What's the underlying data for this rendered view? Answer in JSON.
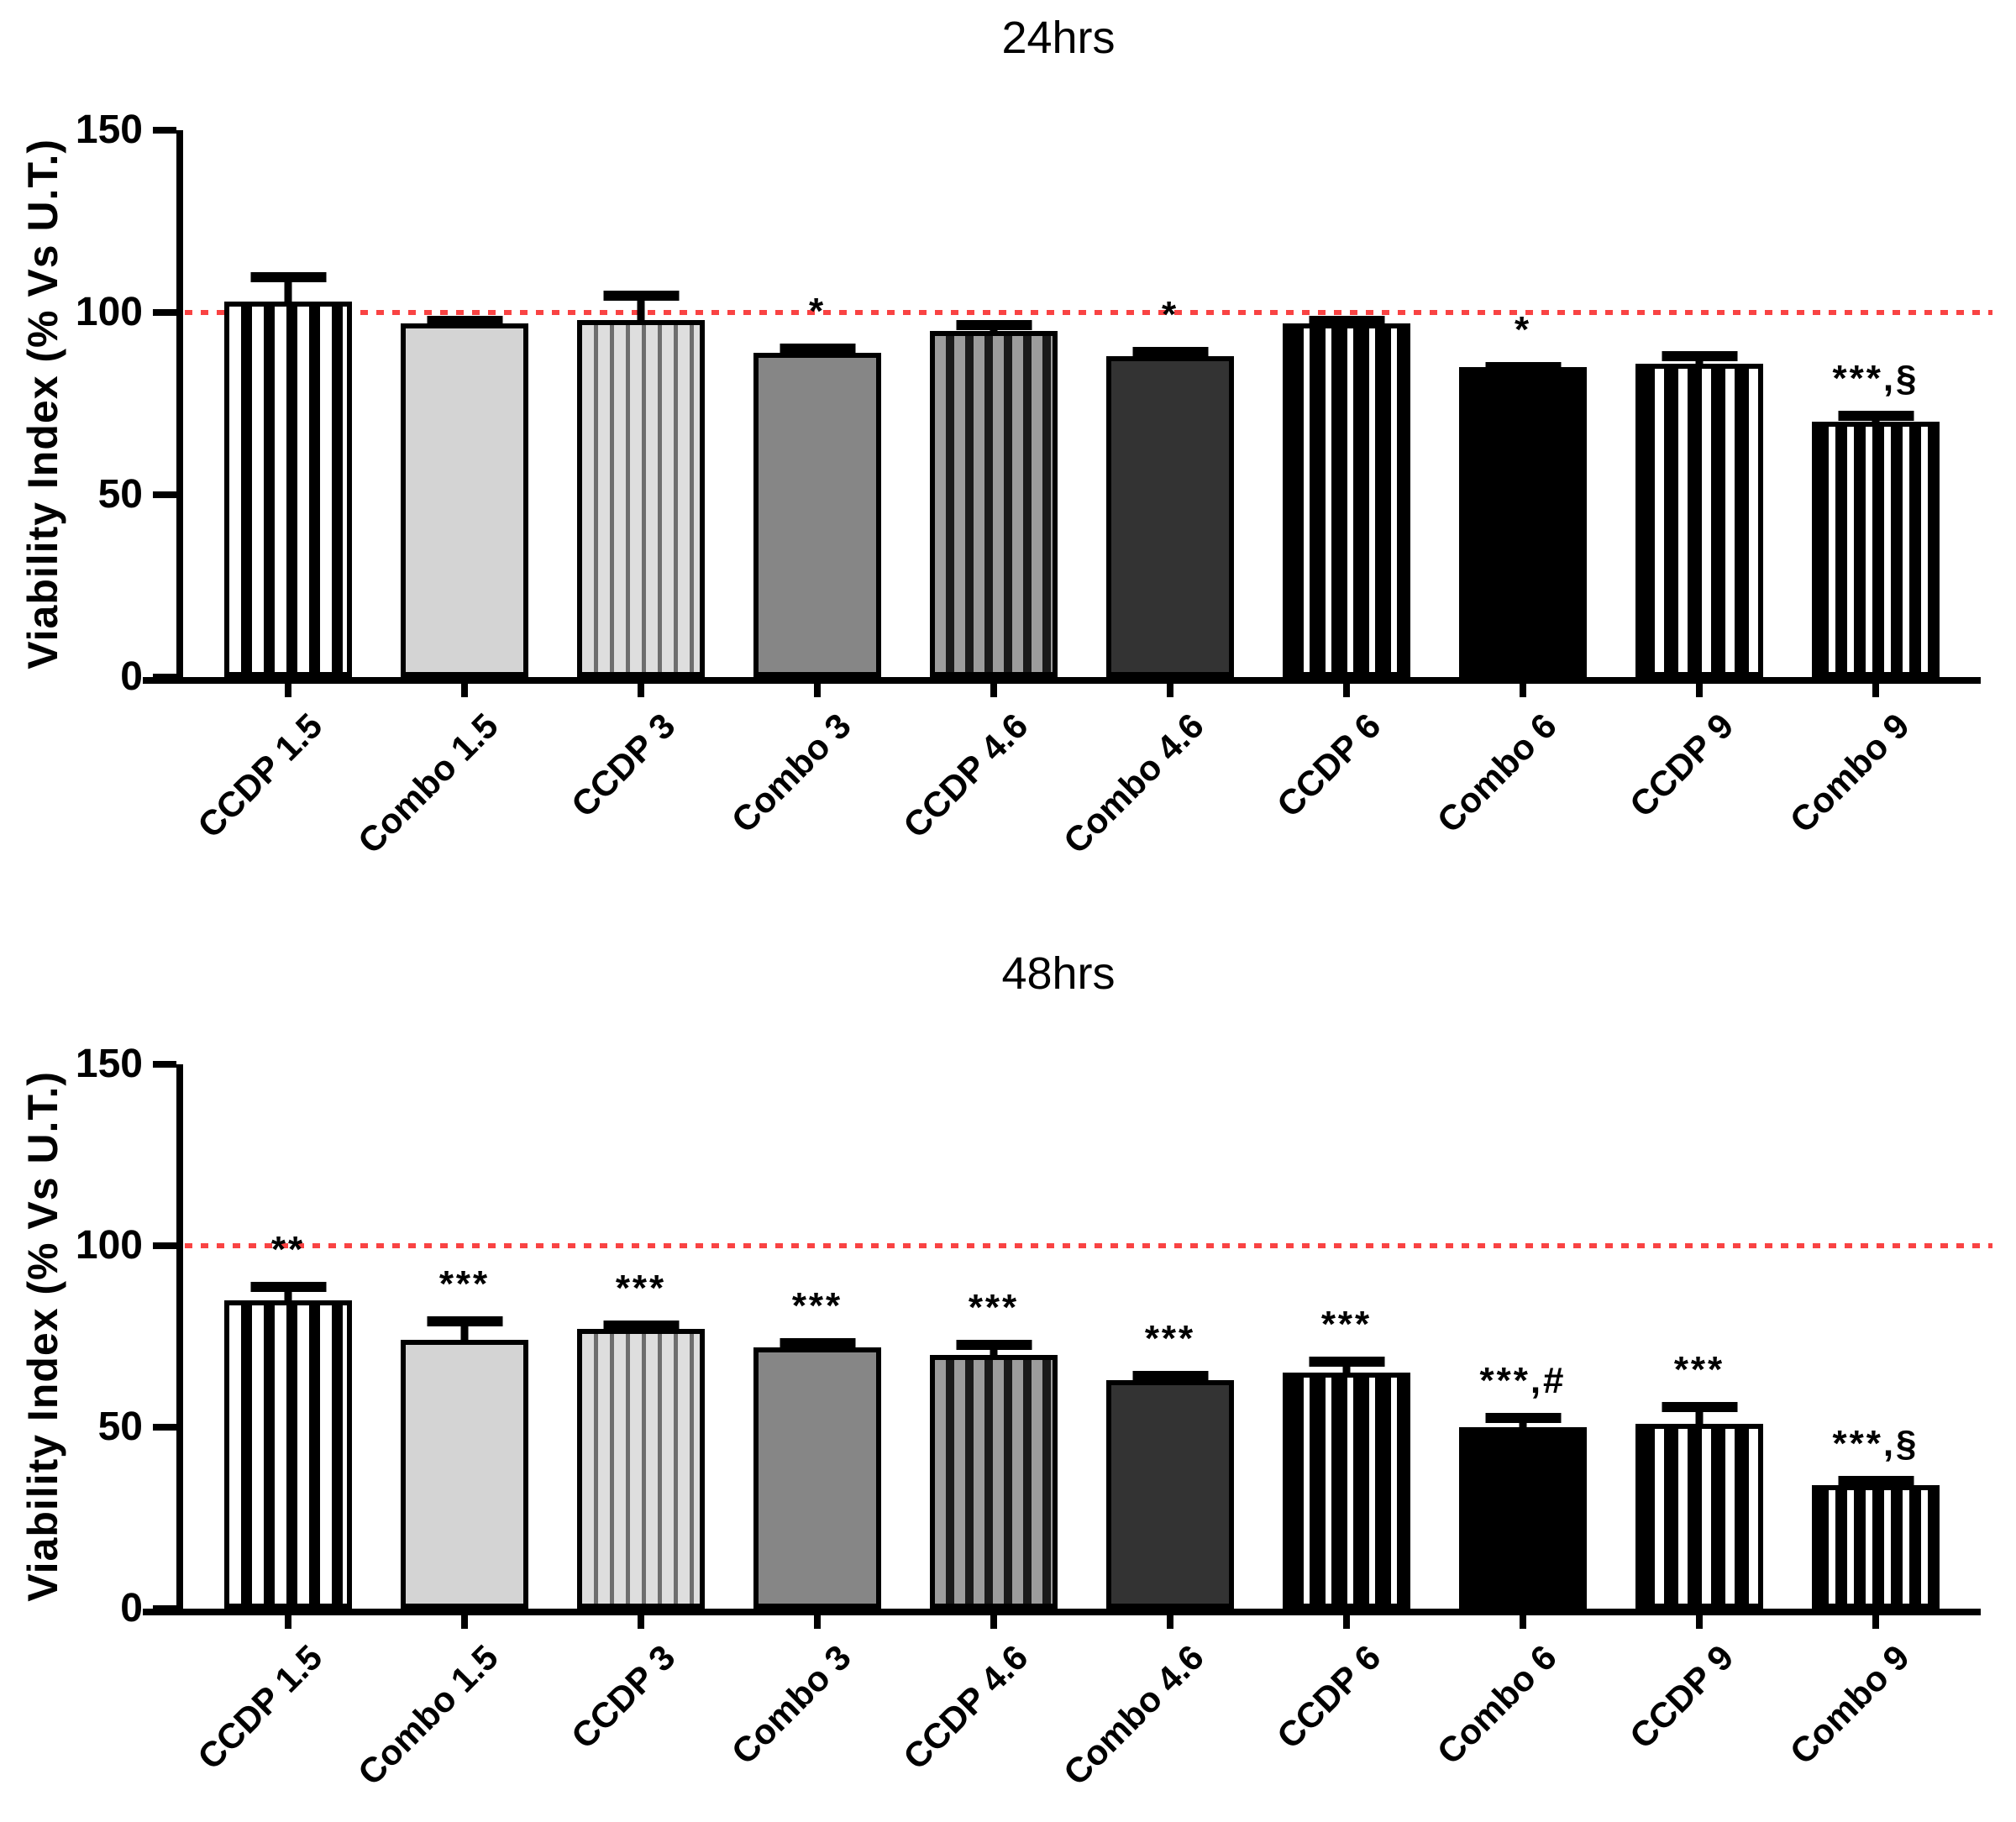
{
  "figure": {
    "background": "#ffffff",
    "axis_color": "#000000",
    "reference_line_color": "#f94343",
    "ylabel": "Viability Index (% Vs U.T.)"
  },
  "chart_data": [
    {
      "type": "bar",
      "title": "24hrs",
      "ylabel": "Viability Index (% Vs U.T.)",
      "xlabel": "",
      "ylim": [
        0,
        150
      ],
      "yticks": [
        0,
        50,
        100,
        150
      ],
      "grid": false,
      "legend": "none",
      "reference_line_y": 100,
      "categories": [
        "CCDP 1.5",
        "Combo 1.5",
        "CCDP 3",
        "Combo 3",
        "CCDP 4.6",
        "Combo 4.6",
        "CCDP 6",
        "Combo 6",
        "CCDP 9",
        "Combo 9"
      ],
      "series": [
        {
          "name": "Viability Index (% Vs U.T.)",
          "values": [
            103,
            97,
            98,
            89,
            95,
            88,
            97,
            85,
            86,
            70
          ],
          "sd_upper": [
            8,
            2,
            8,
            2.5,
            3,
            2.5,
            2,
            1.5,
            3.5,
            3
          ],
          "annotations": [
            "",
            "",
            "",
            "*",
            "",
            "*",
            "",
            "*",
            "",
            "***,§"
          ]
        }
      ],
      "bar_patterns": [
        "black-stripes-on-white",
        "solid-light-gray",
        "thin-gray-stripes-on-light",
        "solid-medium-gray",
        "dark-stripes-on-gray",
        "solid-dark-gray",
        "thin-white-stripes-on-black",
        "solid-black",
        "white-stripes-on-black",
        "dense-white-stripes-on-black"
      ]
    },
    {
      "type": "bar",
      "title": "48hrs",
      "ylabel": "Viability Index (% Vs U.T.)",
      "xlabel": "",
      "ylim": [
        0,
        150
      ],
      "yticks": [
        0,
        50,
        100,
        150
      ],
      "grid": false,
      "legend": "none",
      "reference_line_y": 100,
      "categories": [
        "CCDP 1.5",
        "Combo 1.5",
        "CCDP 3",
        "Combo 3",
        "CCDP 4.6",
        "Combo 4.6",
        "CCDP 6",
        "Combo 6",
        "CCDP 9",
        "Combo 9"
      ],
      "series": [
        {
          "name": "Viability Index (% Vs U.T.)",
          "values": [
            85,
            74,
            77,
            72,
            70,
            63,
            65,
            50,
            51,
            34
          ],
          "sd_upper": [
            5,
            6.5,
            2.5,
            2.5,
            4,
            2.5,
            4.5,
            4,
            6,
            2.5
          ],
          "annotations": [
            "**",
            "***",
            "***",
            "***",
            "***",
            "***",
            "***",
            "***,#",
            "***",
            "***,§"
          ]
        }
      ],
      "bar_patterns": [
        "black-stripes-on-white",
        "solid-light-gray",
        "thin-gray-stripes-on-light",
        "solid-medium-gray",
        "dark-stripes-on-gray",
        "solid-dark-gray",
        "thin-white-stripes-on-black",
        "solid-black",
        "white-stripes-on-black",
        "dense-white-stripes-on-black"
      ]
    }
  ]
}
